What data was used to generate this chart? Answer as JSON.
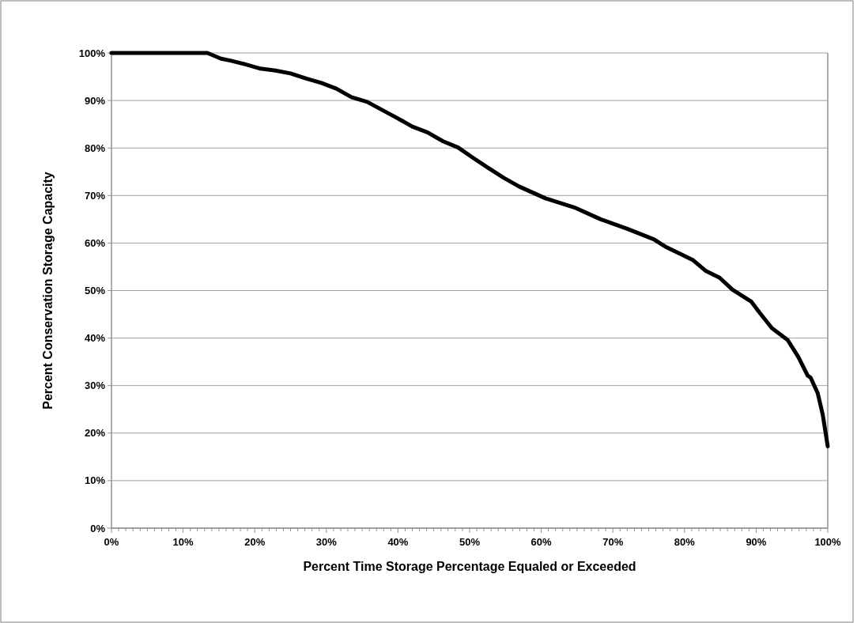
{
  "chart_data": {
    "type": "line",
    "xlabel": "Percent Time Storage Percentage Equaled or Exceeded",
    "ylabel": "Percent Conservation Storage Capacity",
    "series": [
      {
        "color": "#000000",
        "x": [
          0,
          5,
          10,
          13.4,
          15.3,
          16.6,
          18.7,
          20.8,
          22.9,
          25.0,
          27.2,
          29.3,
          31.4,
          33.5,
          35.7,
          37.8,
          39.9,
          42.0,
          44.1,
          46.3,
          48.4,
          50.5,
          52.6,
          54.8,
          56.9,
          60.6,
          64.6,
          68.3,
          72.0,
          75.7,
          77.5,
          81.2,
          83.0,
          84.9,
          86.7,
          89.3,
          90.4,
          92.2,
          94.4,
          95.9,
          97.2,
          97.6,
          98.6,
          99.3,
          100
        ],
        "values": [
          100,
          100,
          100,
          100,
          98.8,
          98.4,
          97.6,
          96.7,
          96.3,
          95.7,
          94.6,
          93.7,
          92.5,
          90.7,
          89.7,
          88.0,
          86.3,
          84.5,
          83.3,
          81.4,
          80.1,
          77.9,
          75.8,
          73.7,
          71.9,
          69.4,
          67.5,
          65.0,
          63.0,
          60.8,
          59.1,
          56.4,
          54.1,
          52.7,
          50.2,
          47.7,
          45.5,
          42.1,
          39.6,
          36.0,
          32.1,
          31.7,
          28.4,
          23.9,
          17.2
        ]
      }
    ],
    "xlim": [
      0,
      100
    ],
    "ylim": [
      0,
      100
    ],
    "xticks": [
      {
        "value": 0,
        "label": "0%"
      },
      {
        "value": 1,
        "label": null
      },
      {
        "value": 2,
        "label": null
      },
      {
        "value": 3,
        "label": null
      },
      {
        "value": 4,
        "label": null
      },
      {
        "value": 5,
        "label": null
      },
      {
        "value": 6,
        "label": null
      },
      {
        "value": 7,
        "label": null
      },
      {
        "value": 8,
        "label": null
      },
      {
        "value": 9,
        "label": null
      },
      {
        "value": 10,
        "label": "10%"
      },
      {
        "value": 11,
        "label": null
      },
      {
        "value": 12,
        "label": null
      },
      {
        "value": 13,
        "label": null
      },
      {
        "value": 14,
        "label": null
      },
      {
        "value": 15,
        "label": null
      },
      {
        "value": 16,
        "label": null
      },
      {
        "value": 17,
        "label": null
      },
      {
        "value": 18,
        "label": null
      },
      {
        "value": 19,
        "label": null
      },
      {
        "value": 20,
        "label": "20%"
      },
      {
        "value": 21,
        "label": null
      },
      {
        "value": 22,
        "label": null
      },
      {
        "value": 23,
        "label": null
      },
      {
        "value": 24,
        "label": null
      },
      {
        "value": 25,
        "label": null
      },
      {
        "value": 26,
        "label": null
      },
      {
        "value": 27,
        "label": null
      },
      {
        "value": 28,
        "label": null
      },
      {
        "value": 29,
        "label": null
      },
      {
        "value": 30,
        "label": "30%"
      },
      {
        "value": 31,
        "label": null
      },
      {
        "value": 32,
        "label": null
      },
      {
        "value": 33,
        "label": null
      },
      {
        "value": 34,
        "label": null
      },
      {
        "value": 35,
        "label": null
      },
      {
        "value": 36,
        "label": null
      },
      {
        "value": 37,
        "label": null
      },
      {
        "value": 38,
        "label": null
      },
      {
        "value": 39,
        "label": null
      },
      {
        "value": 40,
        "label": "40%"
      },
      {
        "value": 41,
        "label": null
      },
      {
        "value": 42,
        "label": null
      },
      {
        "value": 43,
        "label": null
      },
      {
        "value": 44,
        "label": null
      },
      {
        "value": 45,
        "label": null
      },
      {
        "value": 46,
        "label": null
      },
      {
        "value": 47,
        "label": null
      },
      {
        "value": 48,
        "label": null
      },
      {
        "value": 49,
        "label": null
      },
      {
        "value": 50,
        "label": "50%"
      },
      {
        "value": 51,
        "label": null
      },
      {
        "value": 52,
        "label": null
      },
      {
        "value": 53,
        "label": null
      },
      {
        "value": 54,
        "label": null
      },
      {
        "value": 55,
        "label": null
      },
      {
        "value": 56,
        "label": null
      },
      {
        "value": 57,
        "label": null
      },
      {
        "value": 58,
        "label": null
      },
      {
        "value": 59,
        "label": null
      },
      {
        "value": 60,
        "label": "60%"
      },
      {
        "value": 61,
        "label": null
      },
      {
        "value": 62,
        "label": null
      },
      {
        "value": 63,
        "label": null
      },
      {
        "value": 64,
        "label": null
      },
      {
        "value": 65,
        "label": null
      },
      {
        "value": 66,
        "label": null
      },
      {
        "value": 67,
        "label": null
      },
      {
        "value": 68,
        "label": null
      },
      {
        "value": 69,
        "label": null
      },
      {
        "value": 70,
        "label": "70%"
      },
      {
        "value": 71,
        "label": null
      },
      {
        "value": 72,
        "label": null
      },
      {
        "value": 73,
        "label": null
      },
      {
        "value": 74,
        "label": null
      },
      {
        "value": 75,
        "label": null
      },
      {
        "value": 76,
        "label": null
      },
      {
        "value": 77,
        "label": null
      },
      {
        "value": 78,
        "label": null
      },
      {
        "value": 79,
        "label": null
      },
      {
        "value": 80,
        "label": "80%"
      },
      {
        "value": 81,
        "label": null
      },
      {
        "value": 82,
        "label": null
      },
      {
        "value": 83,
        "label": null
      },
      {
        "value": 84,
        "label": null
      },
      {
        "value": 85,
        "label": null
      },
      {
        "value": 86,
        "label": null
      },
      {
        "value": 87,
        "label": null
      },
      {
        "value": 88,
        "label": null
      },
      {
        "value": 89,
        "label": null
      },
      {
        "value": 90,
        "label": "90%"
      },
      {
        "value": 91,
        "label": null
      },
      {
        "value": 92,
        "label": null
      },
      {
        "value": 93,
        "label": null
      },
      {
        "value": 94,
        "label": null
      },
      {
        "value": 95,
        "label": null
      },
      {
        "value": 96,
        "label": null
      },
      {
        "value": 97,
        "label": null
      },
      {
        "value": 98,
        "label": null
      },
      {
        "value": 99,
        "label": null
      },
      {
        "value": 100,
        "label": "100%"
      }
    ],
    "yticks": [
      {
        "value": 0,
        "label": "0%"
      },
      {
        "value": 10,
        "label": "10%"
      },
      {
        "value": 20,
        "label": "20%"
      },
      {
        "value": 30,
        "label": "30%"
      },
      {
        "value": 40,
        "label": "40%"
      },
      {
        "value": 50,
        "label": "50%"
      },
      {
        "value": 60,
        "label": "60%"
      },
      {
        "value": 70,
        "label": "70%"
      },
      {
        "value": 80,
        "label": "80%"
      },
      {
        "value": 90,
        "label": "90%"
      },
      {
        "value": 100,
        "label": "100%"
      }
    ],
    "grid": "y",
    "marker": "none",
    "line_style": "solid"
  }
}
